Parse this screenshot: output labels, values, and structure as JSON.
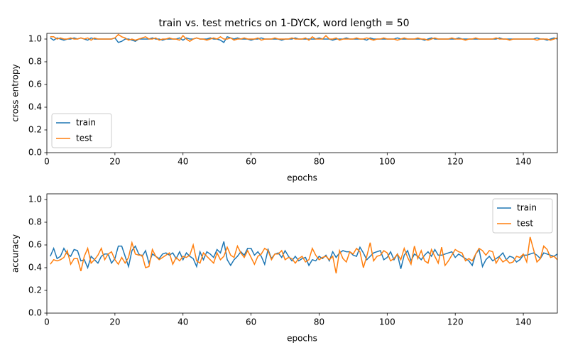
{
  "title": "train vs. test metrics on 1-DYCK, word length = 50",
  "chart_data": [
    {
      "type": "line",
      "xlabel": "epochs",
      "ylabel": "cross entropy",
      "legend": "lower left",
      "xlim": [
        0,
        150
      ],
      "ylim": [
        0,
        1.05
      ],
      "xticks": [
        0,
        20,
        40,
        60,
        80,
        100,
        120,
        140
      ],
      "yticks": [
        {
          "value": 0,
          "label": "0.0"
        },
        {
          "value": 0.2,
          "label": "0.2"
        },
        {
          "value": 0.4,
          "label": "0.4"
        },
        {
          "value": 0.6,
          "label": "0.6"
        },
        {
          "value": 0.8,
          "label": "0.8"
        },
        {
          "value": 1,
          "label": "1.0"
        }
      ],
      "x": [
        1,
        2,
        3,
        4,
        5,
        6,
        7,
        8,
        9,
        10,
        11,
        12,
        13,
        14,
        15,
        16,
        17,
        18,
        19,
        20,
        21,
        22,
        23,
        24,
        25,
        26,
        27,
        28,
        29,
        30,
        31,
        32,
        33,
        34,
        35,
        36,
        37,
        38,
        39,
        40,
        41,
        42,
        43,
        44,
        45,
        46,
        47,
        48,
        49,
        50,
        51,
        52,
        53,
        54,
        55,
        56,
        57,
        58,
        59,
        60,
        61,
        62,
        63,
        64,
        65,
        66,
        67,
        68,
        69,
        70,
        71,
        72,
        73,
        74,
        75,
        76,
        77,
        78,
        79,
        80,
        81,
        82,
        83,
        84,
        85,
        86,
        87,
        88,
        89,
        90,
        91,
        92,
        93,
        94,
        95,
        96,
        97,
        98,
        99,
        100,
        101,
        102,
        103,
        104,
        105,
        106,
        107,
        108,
        109,
        110,
        111,
        112,
        113,
        114,
        115,
        116,
        117,
        118,
        119,
        120,
        121,
        122,
        123,
        124,
        125,
        126,
        127,
        128,
        129,
        130,
        131,
        132,
        133,
        134,
        135,
        136,
        137,
        138,
        139,
        140,
        141,
        142,
        143,
        144,
        145,
        146,
        147,
        148,
        149,
        150
      ],
      "series": [
        {
          "name": "train",
          "color": "#1f77b4",
          "values": [
            1.01,
            0.99,
            1.01,
            1.0,
            0.99,
            1.0,
            1.0,
            1.01,
            1.0,
            1.01,
            1.0,
            0.99,
            1.01,
            1.0,
            1.0,
            1.0,
            1.0,
            1.0,
            1.0,
            1.01,
            0.97,
            0.98,
            1.0,
            1.0,
            0.99,
            0.98,
            1.0,
            1.0,
            1.0,
            1.0,
            1.01,
            1.0,
            1.0,
            0.99,
            1.0,
            1.0,
            1.0,
            1.0,
            1.01,
            0.99,
            1.01,
            1.0,
            1.0,
            1.01,
            1.0,
            1.0,
            1.0,
            1.01,
            1.0,
            1.0,
            0.99,
            0.97,
            1.02,
            1.01,
            1.0,
            1.01,
            1.0,
            1.0,
            1.0,
            0.99,
            1.0,
            1.0,
            1.01,
            1.0,
            1.0,
            1.0,
            1.0,
            1.0,
            0.99,
            1.0,
            1.0,
            1.0,
            1.01,
            1.0,
            1.0,
            1.0,
            1.0,
            1.0,
            1.0,
            1.01,
            1.0,
            1.0,
            1.0,
            0.99,
            1.0,
            1.0,
            1.0,
            1.01,
            1.0,
            1.0,
            1.0,
            1.0,
            1.0,
            0.99,
            1.01,
            1.0,
            1.0,
            1.0,
            1.0,
            1.0,
            1.0,
            1.0,
            1.01,
            1.0,
            1.0,
            1.0,
            1.0,
            1.0,
            1.0,
            1.0,
            0.99,
            1.0,
            1.01,
            1.0,
            1.0,
            1.0,
            1.0,
            1.0,
            1.0,
            1.0,
            1.01,
            1.0,
            1.0,
            1.0,
            1.0,
            1.0,
            1.0,
            1.0,
            1.0,
            1.0,
            1.0,
            1.0,
            1.01,
            1.0,
            1.0,
            1.0,
            1.0,
            1.0,
            1.0,
            1.0,
            1.0,
            1.0,
            1.0,
            1.01,
            1.0,
            1.0,
            0.99,
            1.0,
            1.01,
            1.0
          ]
        },
        {
          "name": "test",
          "color": "#ff7f0e",
          "values": [
            1.02,
            1.02,
            1.0,
            1.01,
            1.0,
            1.0,
            1.01,
            1.0,
            1.0,
            1.01,
            1.0,
            1.01,
            0.99,
            1.01,
            1.0,
            1.0,
            1.0,
            1.0,
            1.0,
            1.01,
            1.04,
            1.02,
            1.01,
            0.99,
            1.0,
            0.99,
            1.0,
            1.01,
            1.02,
            1.0,
            1.0,
            1.01,
            0.99,
            1.0,
            1.0,
            1.01,
            1.0,
            1.0,
            0.99,
            1.03,
            1.0,
            0.98,
            1.0,
            1.01,
            1.0,
            1.0,
            0.99,
            1.0,
            1.01,
            1.0,
            1.02,
            1.0,
            1.0,
            1.01,
            0.99,
            1.0,
            1.0,
            1.01,
            1.0,
            1.0,
            1.0,
            1.01,
            0.99,
            1.0,
            1.0,
            1.0,
            1.01,
            1.0,
            1.0,
            1.0,
            1.0,
            1.01,
            1.0,
            1.0,
            1.0,
            1.01,
            0.99,
            1.02,
            1.0,
            1.0,
            1.0,
            1.03,
            1.0,
            1.0,
            1.01,
            0.99,
            1.0,
            1.0,
            1.0,
            1.0,
            1.01,
            1.0,
            1.0,
            1.01,
            1.0,
            0.99,
            1.0,
            1.0,
            1.01,
            1.0,
            1.0,
            1.0,
            0.99,
            1.0,
            1.01,
            1.0,
            1.0,
            1.0,
            1.01,
            1.0,
            1.0,
            0.99,
            1.0,
            1.01,
            1.0,
            1.0,
            1.0,
            1.0,
            1.01,
            1.0,
            1.0,
            1.0,
            0.99,
            1.0,
            1.0,
            1.01,
            1.0,
            1.0,
            1.0,
            1.0,
            1.0,
            1.01,
            1.0,
            1.0,
            1.0,
            0.99,
            1.0,
            1.0,
            1.0,
            1.0,
            1.0,
            1.0,
            1.0,
            0.99,
            1.0,
            1.0,
            1.0,
            0.99,
            1.0,
            1.01
          ]
        }
      ]
    },
    {
      "type": "line",
      "xlabel": "epochs",
      "ylabel": "accuracy",
      "legend": "upper right",
      "xlim": [
        0,
        150
      ],
      "ylim": [
        0,
        1.05
      ],
      "xticks": [
        0,
        20,
        40,
        60,
        80,
        100,
        120,
        140
      ],
      "yticks": [
        {
          "value": 0,
          "label": "0.0"
        },
        {
          "value": 0.2,
          "label": "0.2"
        },
        {
          "value": 0.4,
          "label": "0.4"
        },
        {
          "value": 0.6,
          "label": "0.6"
        },
        {
          "value": 0.8,
          "label": "0.8"
        },
        {
          "value": 1,
          "label": "1.0"
        }
      ],
      "x": [
        1,
        2,
        3,
        4,
        5,
        6,
        7,
        8,
        9,
        10,
        11,
        12,
        13,
        14,
        15,
        16,
        17,
        18,
        19,
        20,
        21,
        22,
        23,
        24,
        25,
        26,
        27,
        28,
        29,
        30,
        31,
        32,
        33,
        34,
        35,
        36,
        37,
        38,
        39,
        40,
        41,
        42,
        43,
        44,
        45,
        46,
        47,
        48,
        49,
        50,
        51,
        52,
        53,
        54,
        55,
        56,
        57,
        58,
        59,
        60,
        61,
        62,
        63,
        64,
        65,
        66,
        67,
        68,
        69,
        70,
        71,
        72,
        73,
        74,
        75,
        76,
        77,
        78,
        79,
        80,
        81,
        82,
        83,
        84,
        85,
        86,
        87,
        88,
        89,
        90,
        91,
        92,
        93,
        94,
        95,
        96,
        97,
        98,
        99,
        100,
        101,
        102,
        103,
        104,
        105,
        106,
        107,
        108,
        109,
        110,
        111,
        112,
        113,
        114,
        115,
        116,
        117,
        118,
        119,
        120,
        121,
        122,
        123,
        124,
        125,
        126,
        127,
        128,
        129,
        130,
        131,
        132,
        133,
        134,
        135,
        136,
        137,
        138,
        139,
        140,
        141,
        142,
        143,
        144,
        145,
        146,
        147,
        148,
        149,
        150
      ],
      "series": [
        {
          "name": "train",
          "color": "#1f77b4",
          "values": [
            0.5,
            0.57,
            0.48,
            0.5,
            0.57,
            0.52,
            0.5,
            0.56,
            0.55,
            0.46,
            0.47,
            0.4,
            0.5,
            0.47,
            0.44,
            0.5,
            0.52,
            0.52,
            0.44,
            0.48,
            0.59,
            0.59,
            0.5,
            0.41,
            0.55,
            0.59,
            0.52,
            0.5,
            0.55,
            0.44,
            0.52,
            0.5,
            0.48,
            0.52,
            0.53,
            0.51,
            0.53,
            0.48,
            0.54,
            0.47,
            0.53,
            0.5,
            0.48,
            0.41,
            0.54,
            0.47,
            0.54,
            0.52,
            0.49,
            0.56,
            0.53,
            0.63,
            0.47,
            0.42,
            0.47,
            0.5,
            0.54,
            0.51,
            0.57,
            0.57,
            0.51,
            0.54,
            0.5,
            0.43,
            0.56,
            0.48,
            0.52,
            0.53,
            0.49,
            0.55,
            0.5,
            0.46,
            0.5,
            0.46,
            0.48,
            0.49,
            0.42,
            0.47,
            0.46,
            0.5,
            0.48,
            0.51,
            0.46,
            0.54,
            0.49,
            0.53,
            0.55,
            0.54,
            0.54,
            0.51,
            0.5,
            0.58,
            0.53,
            0.47,
            0.5,
            0.53,
            0.54,
            0.55,
            0.47,
            0.49,
            0.54,
            0.47,
            0.52,
            0.39,
            0.51,
            0.55,
            0.46,
            0.52,
            0.5,
            0.47,
            0.51,
            0.54,
            0.5,
            0.56,
            0.51,
            0.51,
            0.52,
            0.53,
            0.54,
            0.49,
            0.52,
            0.5,
            0.48,
            0.46,
            0.42,
            0.52,
            0.56,
            0.41,
            0.47,
            0.5,
            0.46,
            0.48,
            0.5,
            0.53,
            0.47,
            0.5,
            0.49,
            0.45,
            0.47,
            0.51,
            0.51,
            0.52,
            0.53,
            0.51,
            0.48,
            0.53,
            0.52,
            0.51,
            0.5,
            0.52
          ]
        },
        {
          "name": "test",
          "color": "#ff7f0e",
          "values": [
            0.43,
            0.47,
            0.46,
            0.47,
            0.49,
            0.55,
            0.43,
            0.48,
            0.48,
            0.37,
            0.5,
            0.57,
            0.44,
            0.47,
            0.51,
            0.57,
            0.47,
            0.52,
            0.54,
            0.47,
            0.43,
            0.49,
            0.44,
            0.49,
            0.62,
            0.52,
            0.51,
            0.51,
            0.4,
            0.41,
            0.56,
            0.5,
            0.47,
            0.49,
            0.51,
            0.53,
            0.43,
            0.49,
            0.46,
            0.5,
            0.49,
            0.51,
            0.6,
            0.46,
            0.44,
            0.53,
            0.5,
            0.47,
            0.44,
            0.53,
            0.47,
            0.5,
            0.58,
            0.51,
            0.49,
            0.59,
            0.53,
            0.49,
            0.55,
            0.49,
            0.43,
            0.5,
            0.52,
            0.57,
            0.55,
            0.47,
            0.52,
            0.52,
            0.55,
            0.47,
            0.49,
            0.48,
            0.44,
            0.48,
            0.5,
            0.45,
            0.47,
            0.57,
            0.51,
            0.47,
            0.49,
            0.5,
            0.47,
            0.5,
            0.35,
            0.55,
            0.48,
            0.45,
            0.54,
            0.52,
            0.57,
            0.54,
            0.4,
            0.5,
            0.62,
            0.46,
            0.5,
            0.51,
            0.55,
            0.53,
            0.46,
            0.48,
            0.52,
            0.47,
            0.57,
            0.49,
            0.43,
            0.59,
            0.48,
            0.55,
            0.46,
            0.44,
            0.56,
            0.5,
            0.44,
            0.58,
            0.42,
            0.46,
            0.51,
            0.56,
            0.54,
            0.53,
            0.46,
            0.48,
            0.46,
            0.52,
            0.57,
            0.55,
            0.51,
            0.55,
            0.54,
            0.44,
            0.49,
            0.45,
            0.47,
            0.44,
            0.45,
            0.5,
            0.49,
            0.52,
            0.45,
            0.67,
            0.56,
            0.45,
            0.48,
            0.59,
            0.56,
            0.49,
            0.5,
            0.47
          ]
        }
      ]
    }
  ]
}
